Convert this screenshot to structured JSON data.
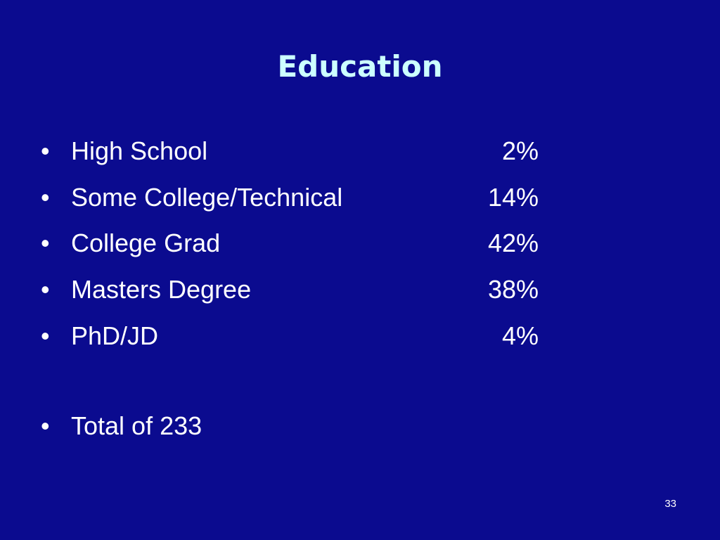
{
  "header": {
    "title": "Education"
  },
  "items": [
    {
      "label": "High School",
      "value": "2%"
    },
    {
      "label": "Some College/Technical",
      "value": "14%"
    },
    {
      "label": "College Grad",
      "value": "42%"
    },
    {
      "label": "Masters Degree",
      "value": "38%"
    },
    {
      "label": "PhD/JD",
      "value": "4%"
    }
  ],
  "total": "Total of 233",
  "page_number": "33"
}
